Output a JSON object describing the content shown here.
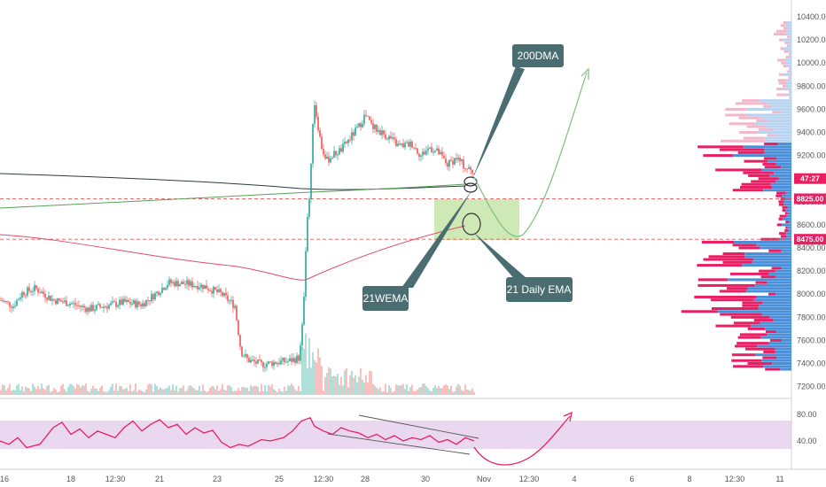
{
  "chart_data": {
    "type": "candlestick",
    "colors": {
      "up": "#26a69a",
      "down": "#ef5350",
      "dma200": "#2f3b3b",
      "wema21": "#5aa05a",
      "ema21": "#e64a6e",
      "rsi": "#e91e63",
      "rsi_band": "#e1c8ea",
      "zone": "#a5d67a",
      "tag_bg": "#4a6d72",
      "projection_price": "#7fbf7f",
      "projection_rsi": "#e91e63",
      "vp_up": "#4a90d9",
      "vp_down": "#e91e63",
      "vp_up_light": "#b8d4f0",
      "vp_down_light": "#f0b8c8"
    },
    "price_axis": {
      "ylim": [
        7150,
        10450
      ],
      "ticks": [
        "10400.00",
        "10200.00",
        "10000.00",
        "9800.00",
        "9600.00",
        "9400.00",
        "9200.00",
        "9000.00",
        "8800.00",
        "8600.00",
        "8400.00",
        "8200.00",
        "8000.00",
        "7800.00",
        "7600.00",
        "7400.00",
        "7200.00"
      ],
      "tick_values": [
        10400,
        10200,
        10000,
        9800,
        9600,
        9400,
        9200,
        9000,
        8800,
        8600,
        8400,
        8200,
        8000,
        7800,
        7600,
        7400,
        7200
      ]
    },
    "rsi_axis": {
      "ylim": [
        10,
        95
      ],
      "ticks": [
        "80.00",
        "40.00"
      ],
      "tick_values": [
        80,
        40
      ],
      "band": [
        30,
        70
      ]
    },
    "x_ticks": [
      "16",
      "18",
      "12:30",
      "21",
      "23",
      "25",
      "12:30",
      "28",
      "30",
      "Nov",
      "12:30",
      "4",
      "6",
      "8",
      "12:30",
      "11"
    ],
    "price_badges": [
      {
        "text": "47:27",
        "value": 9000,
        "color": "#e91e63"
      },
      {
        "text": "8825.00",
        "value": 8825,
        "color": "#e91e63"
      },
      {
        "text": "8475.00",
        "value": 8475,
        "color": "#e91e63"
      }
    ],
    "horizontal_levels": [
      {
        "value": 8825,
        "style": "dashed",
        "color": "#ef5350"
      },
      {
        "value": 8475,
        "style": "dashed",
        "color": "#ef5350"
      }
    ],
    "annotations": [
      {
        "text": "200DMA"
      },
      {
        "text": "21WEMA"
      },
      {
        "text": "21 Daily EMA"
      }
    ],
    "candles_path": [
      [
        0,
        7950
      ],
      [
        15,
        7900
      ],
      [
        25,
        8010
      ],
      [
        40,
        8050
      ],
      [
        60,
        7950
      ],
      [
        80,
        7920
      ],
      [
        100,
        7870
      ],
      [
        120,
        7900
      ],
      [
        140,
        7930
      ],
      [
        160,
        7910
      ],
      [
        175,
        8000
      ],
      [
        190,
        8100
      ],
      [
        210,
        8090
      ],
      [
        230,
        8070
      ],
      [
        250,
        8000
      ],
      [
        265,
        7900
      ],
      [
        272,
        7500
      ],
      [
        280,
        7430
      ],
      [
        295,
        7390
      ],
      [
        310,
        7410
      ],
      [
        325,
        7420
      ],
      [
        338,
        7450
      ],
      [
        342,
        7800
      ],
      [
        346,
        8600
      ],
      [
        350,
        8900
      ],
      [
        354,
        9700
      ],
      [
        358,
        9500
      ],
      [
        362,
        9300
      ],
      [
        368,
        9150
      ],
      [
        375,
        9200
      ],
      [
        385,
        9250
      ],
      [
        395,
        9350
      ],
      [
        405,
        9450
      ],
      [
        412,
        9550
      ],
      [
        420,
        9450
      ],
      [
        430,
        9400
      ],
      [
        440,
        9350
      ],
      [
        450,
        9280
      ],
      [
        465,
        9300
      ],
      [
        475,
        9200
      ],
      [
        485,
        9270
      ],
      [
        495,
        9220
      ],
      [
        505,
        9120
      ],
      [
        515,
        9180
      ],
      [
        525,
        9100
      ],
      [
        535,
        9050
      ]
    ],
    "rsi_path": [
      [
        0,
        40
      ],
      [
        10,
        35
      ],
      [
        20,
        45
      ],
      [
        30,
        30
      ],
      [
        45,
        35
      ],
      [
        60,
        60
      ],
      [
        70,
        68
      ],
      [
        80,
        50
      ],
      [
        90,
        58
      ],
      [
        100,
        45
      ],
      [
        110,
        55
      ],
      [
        120,
        50
      ],
      [
        130,
        45
      ],
      [
        140,
        60
      ],
      [
        150,
        70
      ],
      [
        160,
        55
      ],
      [
        170,
        65
      ],
      [
        180,
        72
      ],
      [
        190,
        60
      ],
      [
        200,
        65
      ],
      [
        210,
        50
      ],
      [
        220,
        60
      ],
      [
        230,
        52
      ],
      [
        240,
        56
      ],
      [
        250,
        38
      ],
      [
        260,
        30
      ],
      [
        270,
        35
      ],
      [
        280,
        32
      ],
      [
        295,
        42
      ],
      [
        305,
        40
      ],
      [
        320,
        45
      ],
      [
        330,
        55
      ],
      [
        340,
        70
      ],
      [
        350,
        75
      ],
      [
        355,
        62
      ],
      [
        365,
        55
      ],
      [
        375,
        50
      ],
      [
        385,
        60
      ],
      [
        395,
        55
      ],
      [
        405,
        52
      ],
      [
        415,
        45
      ],
      [
        425,
        50
      ],
      [
        435,
        42
      ],
      [
        445,
        48
      ],
      [
        455,
        40
      ],
      [
        465,
        45
      ],
      [
        475,
        42
      ],
      [
        485,
        48
      ],
      [
        495,
        38
      ],
      [
        505,
        42
      ],
      [
        515,
        35
      ],
      [
        525,
        45
      ],
      [
        535,
        40
      ]
    ]
  }
}
